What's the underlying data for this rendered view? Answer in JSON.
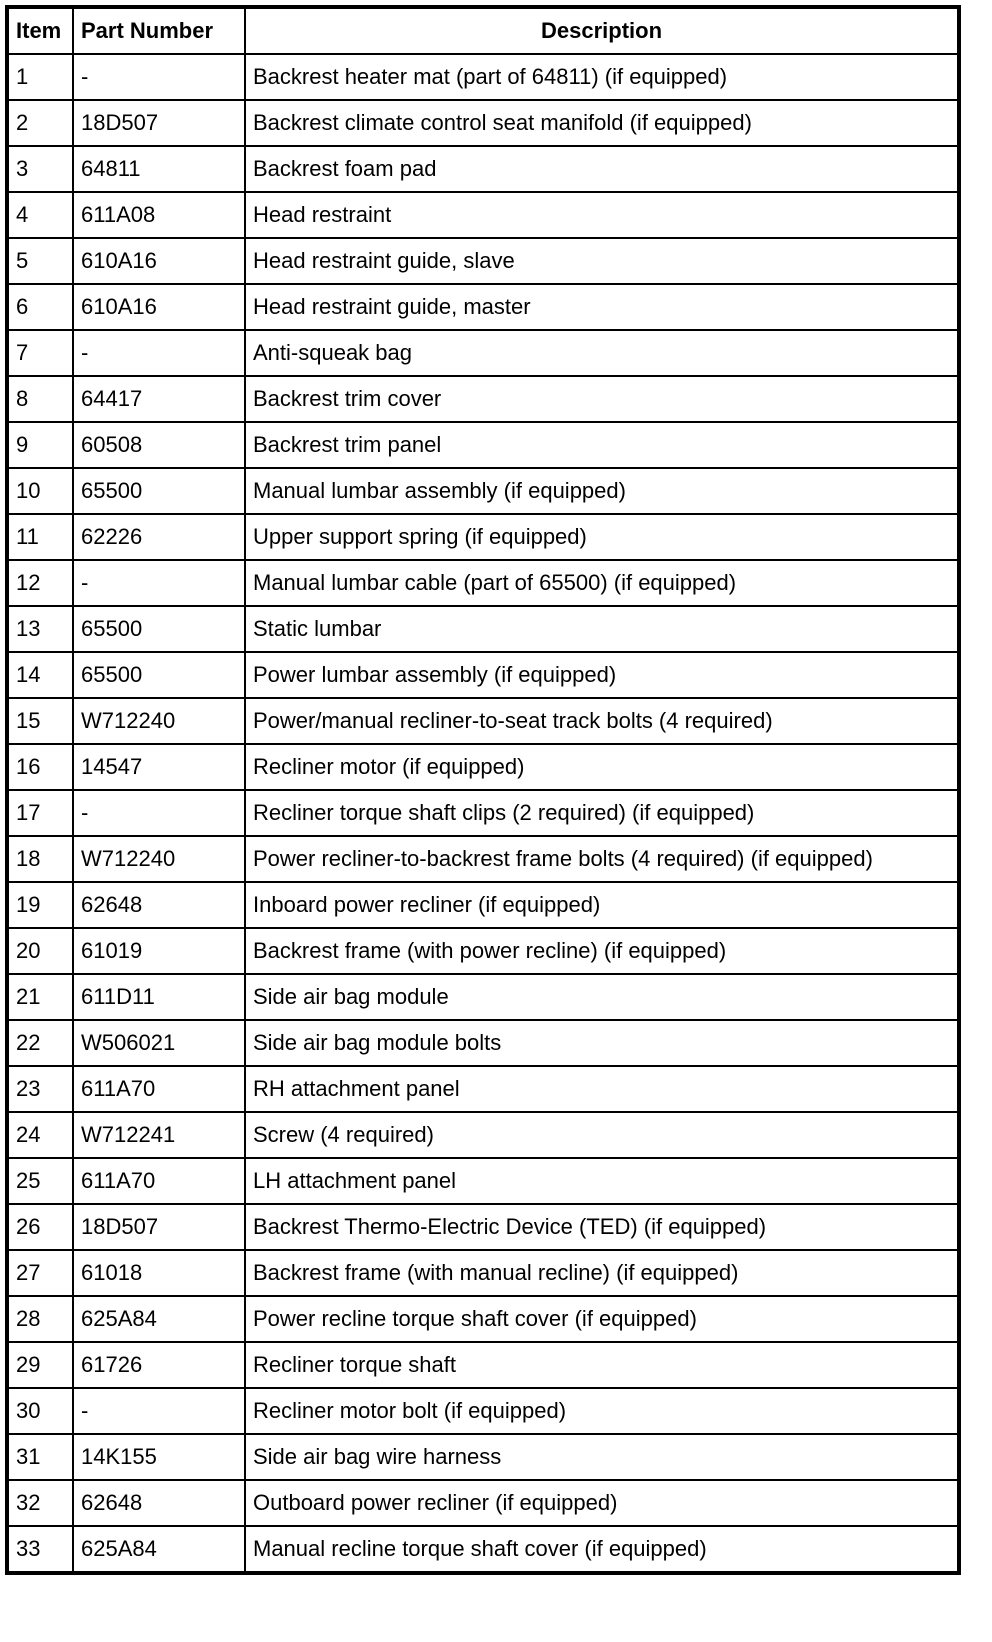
{
  "table": {
    "headers": [
      "Item",
      "Part Number",
      "Description"
    ],
    "rows": [
      [
        "1",
        "-",
        "Backrest heater mat (part of 64811) (if equipped)"
      ],
      [
        "2",
        "18D507",
        "Backrest climate control seat manifold (if equipped)"
      ],
      [
        "3",
        "64811",
        "Backrest foam pad"
      ],
      [
        "4",
        "611A08",
        "Head restraint"
      ],
      [
        "5",
        "610A16",
        "Head restraint guide, slave"
      ],
      [
        "6",
        "610A16",
        "Head restraint guide, master"
      ],
      [
        "7",
        "-",
        "Anti-squeak bag"
      ],
      [
        "8",
        "64417",
        "Backrest trim cover"
      ],
      [
        "9",
        "60508",
        "Backrest trim panel"
      ],
      [
        "10",
        "65500",
        "Manual lumbar assembly (if equipped)"
      ],
      [
        "11",
        "62226",
        "Upper support spring (if equipped)"
      ],
      [
        "12",
        "-",
        "Manual lumbar cable (part of 65500) (if equipped)"
      ],
      [
        "13",
        "65500",
        "Static lumbar"
      ],
      [
        "14",
        "65500",
        "Power lumbar assembly (if equipped)"
      ],
      [
        "15",
        "W712240",
        "Power/manual recliner-to-seat track bolts (4 required)"
      ],
      [
        "16",
        "14547",
        "Recliner motor (if equipped)"
      ],
      [
        "17",
        "-",
        "Recliner torque shaft clips (2 required) (if equipped)"
      ],
      [
        "18",
        "W712240",
        "Power recliner-to-backrest frame bolts (4 required) (if equipped)"
      ],
      [
        "19",
        "62648",
        "Inboard power recliner (if equipped)"
      ],
      [
        "20",
        "61019",
        "Backrest frame (with power recline) (if equipped)"
      ],
      [
        "21",
        "611D11",
        "Side air bag module"
      ],
      [
        "22",
        "W506021",
        "Side air bag module bolts"
      ],
      [
        "23",
        "611A70",
        "RH attachment panel"
      ],
      [
        "24",
        "W712241",
        "Screw (4 required)"
      ],
      [
        "25",
        "611A70",
        "LH attachment panel"
      ],
      [
        "26",
        "18D507",
        "Backrest Thermo-Electric Device (TED) (if equipped)"
      ],
      [
        "27",
        "61018",
        "Backrest frame (with manual recline) (if equipped)"
      ],
      [
        "28",
        "625A84",
        "Power recline torque shaft cover (if equipped)"
      ],
      [
        "29",
        "61726",
        "Recliner torque shaft"
      ],
      [
        "30",
        "-",
        "Recliner motor bolt (if equipped)"
      ],
      [
        "31",
        "14K155",
        "Side air bag wire harness"
      ],
      [
        "32",
        "62648",
        "Outboard power recliner (if equipped)"
      ],
      [
        "33",
        "625A84",
        "Manual recline torque shaft cover (if equipped)"
      ]
    ]
  }
}
